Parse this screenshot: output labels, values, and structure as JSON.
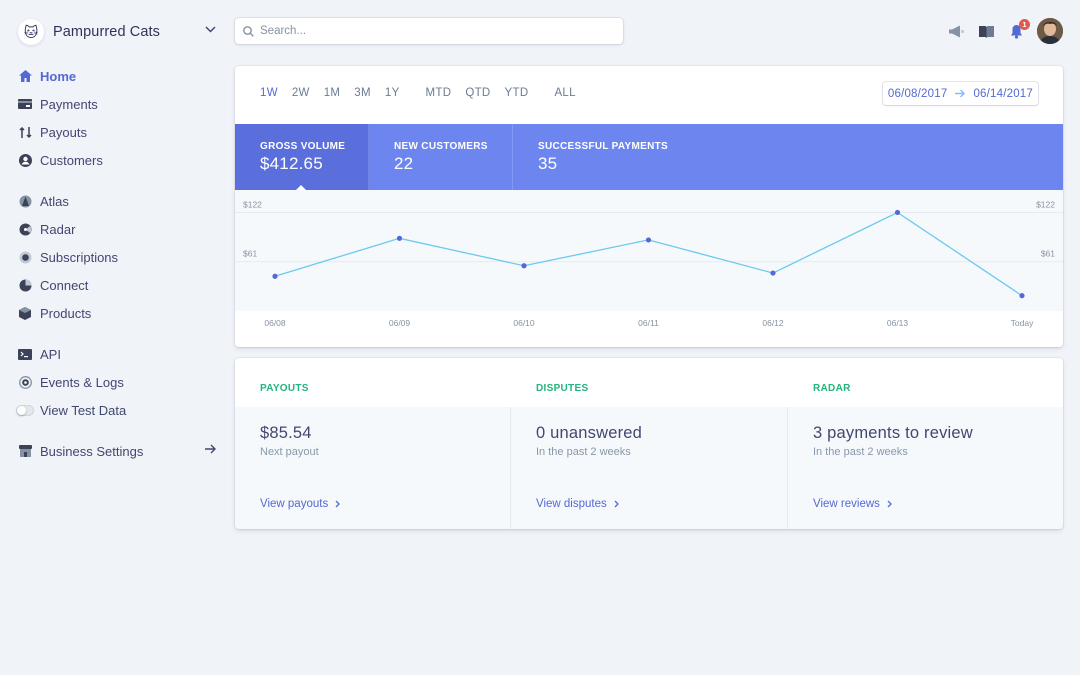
{
  "sidebar": {
    "account_name": "Pampurred Cats",
    "logo_glyph": "🐱",
    "items": [
      {
        "label": "Home",
        "icon": "home-icon"
      },
      {
        "label": "Payments",
        "icon": "payments-icon"
      },
      {
        "label": "Payouts",
        "icon": "payouts-icon"
      },
      {
        "label": "Customers",
        "icon": "customers-icon"
      },
      {
        "label": "Atlas",
        "icon": "atlas-icon"
      },
      {
        "label": "Radar",
        "icon": "radar-icon"
      },
      {
        "label": "Subscriptions",
        "icon": "subscriptions-icon"
      },
      {
        "label": "Connect",
        "icon": "connect-icon"
      },
      {
        "label": "Products",
        "icon": "products-icon"
      },
      {
        "label": "API",
        "icon": "terminal-icon"
      },
      {
        "label": "Events & Logs",
        "icon": "events-icon"
      },
      {
        "label": "View Test Data",
        "icon": "toggle"
      },
      {
        "label": "Business Settings",
        "icon": "store-icon"
      }
    ],
    "active_item": "Home"
  },
  "search": {
    "placeholder": "Search..."
  },
  "topbar": {
    "icons": [
      "megaphone-icon",
      "book-icon",
      "bell-icon"
    ],
    "notification_count": "1"
  },
  "ranges": [
    "1W",
    "2W",
    "1M",
    "3M",
    "1Y",
    "MTD",
    "QTD",
    "YTD",
    "ALL"
  ],
  "active_range": "1W",
  "date_range": {
    "start": "06/08/2017",
    "end": "06/14/2017"
  },
  "metrics": [
    {
      "label": "Gross Volume",
      "value": "$412.65"
    },
    {
      "label": "New Customers",
      "value": "22"
    },
    {
      "label": "Successful Payments",
      "value": "35"
    }
  ],
  "chart_data": {
    "type": "line",
    "categories": [
      "06/08",
      "06/09",
      "06/10",
      "06/11",
      "06/12",
      "06/13",
      "Today"
    ],
    "values": [
      43,
      90,
      56,
      88,
      47,
      122,
      19
    ],
    "ylim": [
      0,
      130
    ],
    "yticks": [
      {
        "value": 61,
        "label": "$61"
      },
      {
        "value": 122,
        "label": "$122"
      }
    ],
    "grid": true,
    "line_color": "#6cc9ee",
    "point_color": "#5469d4"
  },
  "summary": {
    "payouts": {
      "heading": "Payouts",
      "value": "$85.54",
      "sub": "Next payout",
      "link": "View payouts"
    },
    "disputes": {
      "heading": "Disputes",
      "value": "0 unanswered",
      "sub": "In the past 2 weeks",
      "link": "View disputes"
    },
    "radar": {
      "heading": "Radar",
      "value": "3 payments to review",
      "sub": "In the past 2 weeks",
      "link": "View reviews"
    }
  },
  "colors": {
    "accent": "#5469d4",
    "metric_bar": "#6d86ef",
    "metric_active": "#5a6fdc",
    "section_heading": "#24b47e"
  }
}
